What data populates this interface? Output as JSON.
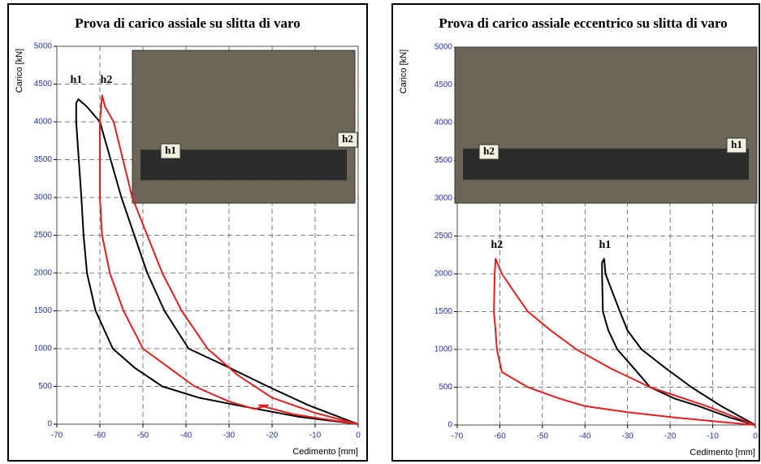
{
  "chart_data": [
    {
      "type": "line",
      "title": "Prova di carico assiale  su slitta di varo",
      "xlabel": "Cedimento [mm]",
      "ylabel": "Carico  [kN]",
      "xlim": [
        -70,
        0
      ],
      "ylim": [
        0,
        5000
      ],
      "xticks": [
        -70,
        -60,
        -50,
        -40,
        -30,
        -20,
        -10,
        0
      ],
      "yticks": [
        0,
        500,
        1000,
        1500,
        2000,
        2500,
        3000,
        3500,
        4000,
        4500,
        5000
      ],
      "grid": true,
      "series": [
        {
          "name": "h1",
          "color": "#000000",
          "x": [
            0,
            -11.5,
            -21,
            -30,
            -39.4,
            -45,
            -49,
            -55,
            -60,
            -63,
            -65,
            -65.5,
            -65.5,
            -64.3,
            -63.8,
            -63,
            -61,
            -57,
            -52,
            -45.5,
            -37,
            -28,
            -14,
            0
          ],
          "values": [
            0,
            250,
            500,
            750,
            1000,
            1500,
            2000,
            3000,
            4000,
            4200,
            4300,
            4250,
            4000,
            3000,
            2500,
            2000,
            1500,
            1000,
            750,
            500,
            350,
            250,
            100,
            0
          ]
        },
        {
          "name": "h2",
          "color": "#e02020",
          "x": [
            0,
            -10,
            -20,
            -28,
            -35,
            -41,
            -45.5,
            -52.5,
            -56.8,
            -58.8,
            -59.5,
            -60,
            -60,
            -59.5,
            -57.7,
            -54.5,
            -50,
            -44,
            -38,
            -30,
            -24,
            -21,
            -23,
            -15,
            0
          ],
          "values": [
            0,
            150,
            350,
            650,
            1000,
            1500,
            2000,
            3000,
            4000,
            4200,
            4350,
            4000,
            3000,
            2500,
            2000,
            1500,
            1000,
            750,
            500,
            300,
            200,
            250,
            250,
            130,
            0
          ]
        }
      ],
      "annotations": [
        {
          "text": "h1",
          "x": -65.5,
          "y": 4550
        },
        {
          "text": "h2",
          "x": -58.5,
          "y": 4550
        }
      ],
      "photo_labels": [
        "h1",
        "h2"
      ]
    },
    {
      "type": "line",
      "title": "Prova di carico assiale eccentrico su slitta di varo",
      "xlabel": "Cedimento [mm]",
      "ylabel": "Carico  [kN]",
      "xlim": [
        -70,
        0
      ],
      "ylim": [
        0,
        5000
      ],
      "xticks": [
        -70,
        -60,
        -50,
        -40,
        -30,
        -20,
        -10,
        0
      ],
      "yticks": [
        0,
        500,
        1000,
        1500,
        2000,
        2500,
        3000,
        3500,
        4000,
        4500,
        5000
      ],
      "grid": true,
      "series": [
        {
          "name": "h1",
          "color": "#000000",
          "x": [
            0,
            -8,
            -15,
            -21,
            -26.7,
            -30,
            -31.8,
            -33.5,
            -35.2,
            -35.5,
            -36,
            -36,
            -35.8,
            -34.5,
            -32.4,
            -28.5,
            -24.7,
            -19,
            -13.3,
            -6,
            0
          ],
          "values": [
            0,
            250,
            500,
            750,
            1000,
            1250,
            1500,
            1750,
            2000,
            2200,
            2150,
            2000,
            1500,
            1250,
            1000,
            750,
            500,
            350,
            250,
            100,
            0
          ]
        },
        {
          "name": "h2",
          "color": "#e02020",
          "x": [
            0,
            -11.4,
            -24.7,
            -34,
            -42,
            -48,
            -53.4,
            -56.5,
            -59.5,
            -61,
            -61.2,
            -61.4,
            -61,
            -60.7,
            -59.5,
            -53.4,
            -46,
            -40,
            -30,
            -19,
            -8,
            0
          ],
          "values": [
            0,
            250,
            500,
            750,
            1000,
            1250,
            1500,
            1750,
            2000,
            2200,
            2000,
            1500,
            1250,
            1000,
            700,
            500,
            350,
            250,
            170,
            100,
            40,
            0
          ]
        }
      ],
      "annotations": [
        {
          "text": "h2",
          "x": -60.7,
          "y": 2380
        },
        {
          "text": "h1",
          "x": -35.3,
          "y": 2380
        }
      ],
      "photo_labels": [
        "h2",
        "h1"
      ]
    }
  ]
}
